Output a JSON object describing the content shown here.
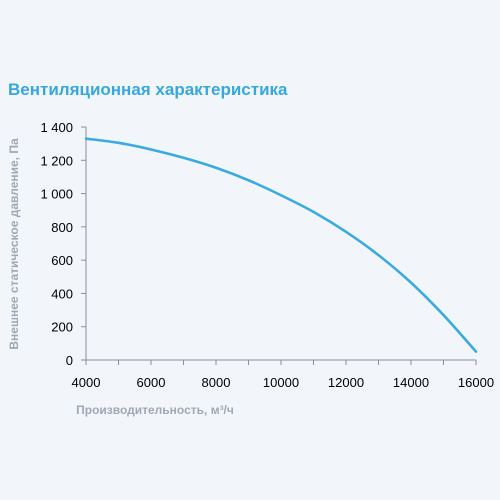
{
  "title": "Вентиляционная характеристика",
  "chart_data": {
    "type": "line",
    "title": "Вентиляционная характеристика",
    "xlabel": "Производительность, м³/ч",
    "ylabel": "Внешнее статическое давление, Па",
    "xlim": [
      4000,
      16000
    ],
    "ylim": [
      0,
      1400
    ],
    "x_ticks": [
      4000,
      6000,
      8000,
      10000,
      12000,
      14000,
      16000
    ],
    "x_tick_labels": [
      "4000",
      "6000",
      "8000",
      "10000",
      "12000",
      "14000",
      "16000"
    ],
    "y_ticks": [
      0,
      200,
      400,
      600,
      800,
      1000,
      1200,
      1400
    ],
    "y_tick_labels": [
      "0",
      "200",
      "400",
      "600",
      "800",
      "1 000",
      "1 200",
      "1 400"
    ],
    "grid": false,
    "series": [
      {
        "color": "#3aabe2",
        "x": [
          4000,
          5000,
          6000,
          7000,
          8000,
          9000,
          10000,
          11000,
          12000,
          13000,
          14000,
          15000,
          16000
        ],
        "y": [
          1330,
          1305,
          1265,
          1215,
          1155,
          1080,
          990,
          890,
          770,
          630,
          465,
          270,
          50
        ]
      }
    ]
  }
}
